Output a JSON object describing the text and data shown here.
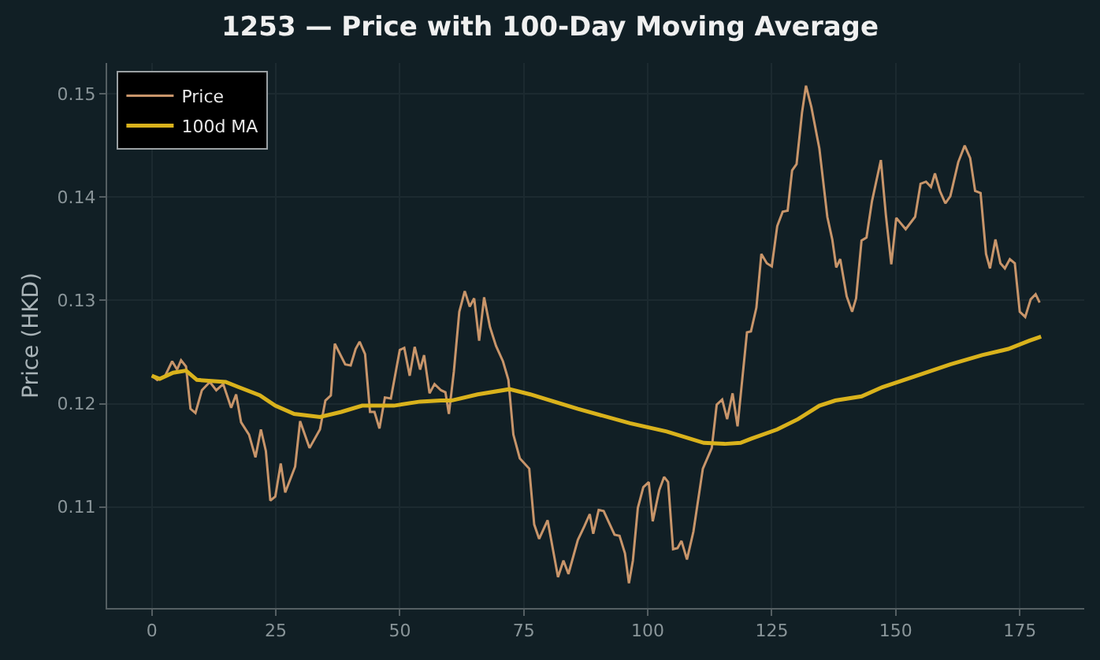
{
  "chart_data": {
    "type": "line",
    "title": "1253 — Price with 100-Day Moving Average",
    "ylabel": "Price (HKD)",
    "xlim": [
      -9,
      188
    ],
    "xticks": [
      0,
      25,
      50,
      75,
      100,
      125,
      150,
      175
    ],
    "ylim": [
      0.1002,
      0.153
    ],
    "yticks": [
      0.11,
      0.12,
      0.13,
      0.14,
      0.15
    ],
    "grid": true,
    "legend": "top left",
    "marker": "none",
    "line_style": "solid",
    "series": [
      {
        "name": "Price",
        "color": "#c8956a",
        "x": [
          0,
          1.1,
          2.7,
          4.1,
          5.1,
          5.9,
          6.9,
          7.8,
          8.8,
          10.1,
          11.7,
          13.0,
          14.4,
          16.0,
          17.0,
          18.0,
          19.6,
          20.9,
          22.0,
          23.0,
          23.9,
          24.9,
          26.0,
          26.9,
          28.9,
          29.9,
          31.8,
          33.9,
          35.0,
          36.1,
          36.9,
          39.0,
          40.1,
          41.1,
          41.9,
          43.0,
          44.0,
          44.9,
          45.9,
          47.0,
          48.2,
          50.0,
          50.9,
          52.0,
          53.0,
          54.1,
          54.9,
          56.0,
          57.0,
          58.3,
          59.2,
          59.9,
          60.9,
          62.0,
          63.1,
          64.1,
          65.0,
          66.0,
          67.0,
          68.2,
          69.4,
          70.8,
          71.9,
          72.9,
          74.2,
          76.1,
          77.1,
          78.1,
          79.8,
          81.9,
          83.0,
          84.0,
          85.9,
          87.2,
          88.3,
          89.0,
          90.1,
          91.1,
          93.3,
          94.3,
          95.4,
          96.2,
          97.0,
          98.0,
          99.1,
          100.2,
          101.0,
          102.3,
          103.3,
          104.1,
          105.1,
          106.0,
          106.8,
          107.9,
          109.2,
          111.1,
          112.9,
          113.9,
          115.0,
          116.0,
          117.1,
          118.1,
          120.0,
          120.8,
          121.9,
          122.9,
          124.0,
          125.0,
          126.1,
          127.2,
          128.2,
          129.1,
          130.0,
          131.1,
          131.9,
          133.0,
          134.6,
          136.2,
          137.2,
          138.0,
          138.8,
          140.1,
          141.2,
          142.0,
          143.1,
          144.1,
          145.2,
          147.0,
          148.0,
          149.1,
          150.1,
          152.0,
          153.9,
          155.0,
          156.1,
          157.1,
          157.9,
          158.9,
          160.0,
          161.0,
          162.6,
          163.9,
          165.0,
          166.0,
          167.1,
          168.2,
          169.0,
          170.1,
          171.1,
          172.0,
          173.0,
          174.0,
          175.0,
          176.1,
          177.2,
          178.2,
          179.0
        ],
        "values": [
          0.1227,
          0.1223,
          0.1227,
          0.1241,
          0.1233,
          0.1242,
          0.1236,
          0.1195,
          0.1191,
          0.1213,
          0.1221,
          0.1213,
          0.1219,
          0.1196,
          0.1209,
          0.1182,
          0.117,
          0.1148,
          0.1175,
          0.1154,
          0.1106,
          0.111,
          0.1142,
          0.1114,
          0.1139,
          0.1183,
          0.1157,
          0.1175,
          0.1203,
          0.1208,
          0.1258,
          0.1238,
          0.1237,
          0.1253,
          0.126,
          0.1248,
          0.1192,
          0.1192,
          0.1176,
          0.1206,
          0.1205,
          0.1252,
          0.1254,
          0.1227,
          0.1255,
          0.1233,
          0.1247,
          0.121,
          0.1219,
          0.1213,
          0.1211,
          0.119,
          0.1231,
          0.1289,
          0.1309,
          0.1294,
          0.1302,
          0.1261,
          0.1303,
          0.1274,
          0.1256,
          0.1241,
          0.1223,
          0.117,
          0.1147,
          0.1137,
          0.1083,
          0.1069,
          0.1087,
          0.1032,
          0.1048,
          0.1035,
          0.1068,
          0.1081,
          0.1093,
          0.1074,
          0.1097,
          0.1096,
          0.1073,
          0.1072,
          0.1055,
          0.1026,
          0.1048,
          0.1099,
          0.1119,
          0.1124,
          0.1086,
          0.1116,
          0.1129,
          0.1124,
          0.1059,
          0.106,
          0.1067,
          0.1049,
          0.1076,
          0.1137,
          0.1157,
          0.1199,
          0.1204,
          0.1185,
          0.121,
          0.1178,
          0.1269,
          0.127,
          0.1293,
          0.1345,
          0.1336,
          0.1333,
          0.1372,
          0.1386,
          0.1387,
          0.1426,
          0.1432,
          0.1482,
          0.1508,
          0.1487,
          0.1447,
          0.1381,
          0.1359,
          0.1332,
          0.134,
          0.1304,
          0.1289,
          0.1302,
          0.1358,
          0.1361,
          0.1396,
          0.1436,
          0.1383,
          0.1335,
          0.138,
          0.1369,
          0.1381,
          0.1413,
          0.1415,
          0.141,
          0.1423,
          0.1406,
          0.1394,
          0.1401,
          0.1434,
          0.145,
          0.1438,
          0.1406,
          0.1404,
          0.1345,
          0.1331,
          0.1359,
          0.1336,
          0.1331,
          0.134,
          0.1336,
          0.1289,
          0.1284,
          0.1301,
          0.1306,
          0.1298
        ]
      },
      {
        "name": "100d MA",
        "color": "#d9b21c",
        "x": [
          0,
          1.6,
          4.3,
          6.9,
          9.1,
          14.9,
          17.5,
          21.8,
          24.9,
          28.7,
          33.9,
          38.2,
          42.4,
          48.8,
          54.1,
          58.3,
          60.4,
          65.7,
          72.1,
          76.3,
          85.9,
          96.4,
          103.8,
          111.3,
          115.5,
          118.7,
          120.8,
          126.1,
          130.3,
          134.6,
          137.8,
          143.1,
          147.3,
          153.6,
          161.0,
          167.4,
          172.7,
          176.9,
          179.3
        ],
        "values": [
          0.1227,
          0.1224,
          0.123,
          0.1232,
          0.1223,
          0.1221,
          0.1216,
          0.1208,
          0.1198,
          0.119,
          0.1187,
          0.1192,
          0.1198,
          0.1198,
          0.1202,
          0.1203,
          0.1203,
          0.1209,
          0.1214,
          0.1209,
          0.1195,
          0.1181,
          0.1173,
          0.1162,
          0.1161,
          0.1162,
          0.1166,
          0.1175,
          0.1185,
          0.1198,
          0.1203,
          0.1207,
          0.1216,
          0.1226,
          0.1238,
          0.1247,
          0.1253,
          0.1261,
          0.1265
        ]
      }
    ]
  }
}
